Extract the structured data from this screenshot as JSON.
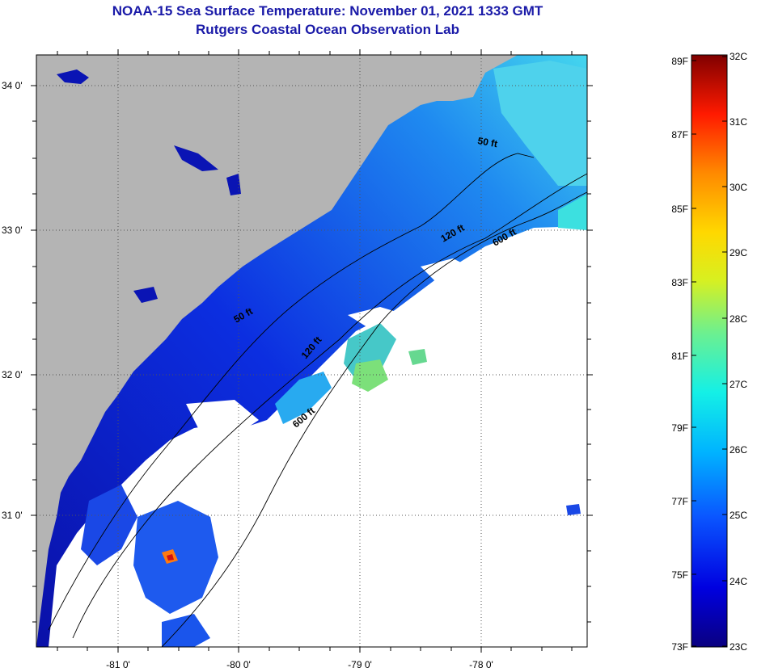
{
  "title_line1": "NOAA-15 Sea Surface Temperature:  November 01, 2021 1333 GMT",
  "title_line2": "Rutgers Coastal Ocean Observation Lab",
  "lat_labels": [
    "34 0'",
    "33 0'",
    "32 0'",
    "31 0'"
  ],
  "lon_labels": [
    "-81 0'",
    "-80 0'",
    "-79 0'",
    "-78 0'"
  ],
  "contour_labels": [
    "50 ft",
    "120 ft",
    "600 ft",
    "50 ft",
    "120 ft",
    "600 ft"
  ],
  "colorbar": {
    "fahrenheit": [
      "89F",
      "87F",
      "85F",
      "83F",
      "81F",
      "79F",
      "77F",
      "75F",
      "73F"
    ],
    "celsius": [
      "32C",
      "31C",
      "30C",
      "29C",
      "28C",
      "27C",
      "26C",
      "25C",
      "24C",
      "23C"
    ]
  },
  "colors": {
    "land": "#b4b4b4",
    "title": "#1a1aa8",
    "cold_water": "#0a14b4",
    "warm_water": "#3cdce6",
    "cloud": "#ffffff"
  }
}
